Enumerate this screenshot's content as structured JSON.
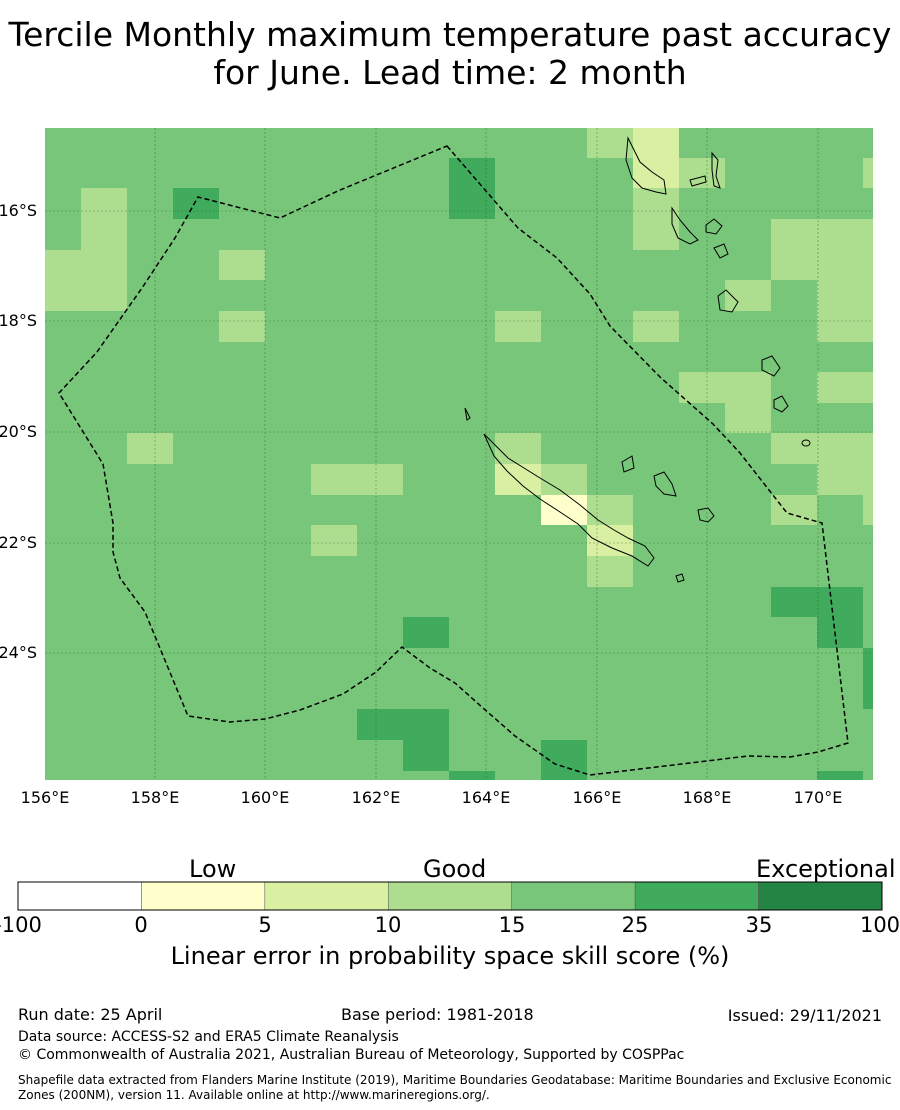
{
  "title": {
    "line1": "Tercile Monthly maximum temperature past accuracy",
    "line2": "for June. Lead time: 2 month"
  },
  "map": {
    "region": "New Caledonia",
    "lon_range": [
      156,
      171
    ],
    "lat_range": [
      -26.5,
      -14.8
    ],
    "x_ticks": [
      "156°E",
      "158°E",
      "160°E",
      "162°E",
      "164°E",
      "166°E",
      "168°E",
      "170°E"
    ],
    "y_ticks": [
      "16°S",
      "18°S",
      "20°S",
      "22°S",
      "24°S"
    ],
    "colors": {
      "band_0_5": "#ffffcc",
      "band_5_10": "#d9f0a3",
      "band_10_15": "#addd8e",
      "band_15_25": "#78c679",
      "band_25_35": "#41ab5d",
      "band_35_100": "#238443",
      "eez_line": "#000000"
    }
  },
  "colorbar": {
    "categories": [
      "Low",
      "Good",
      "Exceptional"
    ],
    "ticks": [
      "-100",
      "0",
      "5",
      "10",
      "15",
      "25",
      "35",
      "100"
    ],
    "colors": [
      "#ffffff",
      "#ffffcc",
      "#d9f0a3",
      "#addd8e",
      "#78c679",
      "#41ab5d",
      "#238443"
    ],
    "label": "Linear error in probability space skill score (%)"
  },
  "footer": {
    "run_date": "Run date: 25 April",
    "base_period": "Base period: 1981-2018",
    "issued": "Issued: 29/11/2021",
    "data_source": "Data source: ACCESS-S2 and ERA5 Climate Reanalysis",
    "copyright": "© Commonwealth of Australia 2021, Australian Bureau of Meteorology, Supported by COSPPac",
    "shapefile_line1": "Shapefile data extracted from Flanders Marine Institute (2019), Maritime Boundaries Geodatabase: Maritime Boundaries and Exclusive Economic",
    "shapefile_line2": "Zones (200NM), version 11. Available online at http://www.marineregions.org/."
  }
}
